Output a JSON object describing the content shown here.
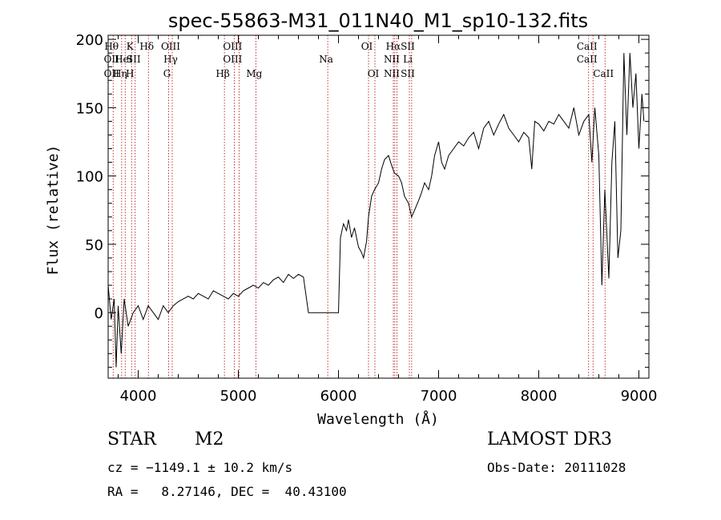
{
  "chart_data": {
    "type": "line",
    "title": "spec-55863-M31_011N40_M1_sp10-132.fits",
    "xlabel": "Wavelength (Å)",
    "ylabel": "Flux (relative)",
    "xlim": [
      3700,
      9100
    ],
    "ylim": [
      -48,
      203
    ],
    "xticks": [
      4000,
      5000,
      6000,
      7000,
      8000,
      9000
    ],
    "yticks": [
      0,
      50,
      100,
      150,
      200
    ],
    "series": [
      {
        "name": "flux",
        "x": [
          3700,
          3730,
          3760,
          3780,
          3800,
          3830,
          3860,
          3900,
          3950,
          4000,
          4050,
          4100,
          4150,
          4200,
          4250,
          4300,
          4350,
          4400,
          4450,
          4500,
          4550,
          4600,
          4650,
          4700,
          4750,
          4800,
          4850,
          4900,
          4950,
          5000,
          5050,
          5100,
          5150,
          5200,
          5250,
          5300,
          5350,
          5400,
          5450,
          5500,
          5550,
          5600,
          5650,
          5700,
          5800,
          5900,
          6000,
          6020,
          6050,
          6080,
          6100,
          6130,
          6160,
          6200,
          6230,
          6250,
          6280,
          6300,
          6330,
          6360,
          6400,
          6430,
          6460,
          6500,
          6530,
          6560,
          6600,
          6630,
          6660,
          6700,
          6730,
          6760,
          6800,
          6830,
          6860,
          6900,
          6930,
          6960,
          7000,
          7030,
          7060,
          7100,
          7150,
          7200,
          7250,
          7300,
          7350,
          7400,
          7450,
          7500,
          7550,
          7600,
          7650,
          7700,
          7750,
          7800,
          7850,
          7900,
          7930,
          7960,
          8000,
          8050,
          8100,
          8150,
          8200,
          8250,
          8300,
          8350,
          8400,
          8450,
          8500,
          8530,
          8560,
          8600,
          8630,
          8660,
          8700,
          8730,
          8760,
          8790,
          8820,
          8850,
          8880,
          8910,
          8940,
          8970,
          9000,
          9030,
          9050
        ],
        "y": [
          20,
          -5,
          10,
          -40,
          5,
          -30,
          10,
          -10,
          0,
          5,
          -5,
          5,
          0,
          -5,
          5,
          0,
          5,
          8,
          10,
          12,
          10,
          14,
          12,
          10,
          16,
          14,
          12,
          10,
          14,
          12,
          16,
          18,
          20,
          18,
          22,
          20,
          24,
          26,
          22,
          28,
          25,
          28,
          26,
          0,
          0,
          0,
          0,
          55,
          65,
          60,
          68,
          55,
          62,
          48,
          44,
          40,
          52,
          70,
          85,
          90,
          95,
          105,
          112,
          115,
          108,
          102,
          100,
          95,
          85,
          80,
          70,
          75,
          82,
          88,
          95,
          90,
          100,
          115,
          125,
          110,
          105,
          115,
          120,
          125,
          122,
          128,
          132,
          120,
          135,
          140,
          130,
          138,
          145,
          135,
          130,
          125,
          132,
          128,
          105,
          140,
          138,
          133,
          140,
          138,
          145,
          140,
          135,
          150,
          130,
          140,
          145,
          110,
          150,
          115,
          20,
          90,
          25,
          110,
          140,
          40,
          60,
          190,
          130,
          190,
          150,
          175,
          120,
          160,
          140
        ]
      }
    ],
    "lines": [
      {
        "x": 3750,
        "labels": [
          "Hθ",
          "OII",
          "OII"
        ]
      },
      {
        "x": 3835,
        "labels": [
          "",
          "",
          "Hη"
        ]
      },
      {
        "x": 3870,
        "labels": [
          "",
          "HeI",
          ""
        ]
      },
      {
        "x": 3934,
        "labels": [
          "K",
          "",
          "H"
        ]
      },
      {
        "x": 3970,
        "labels": [
          "",
          "SII",
          ""
        ]
      },
      {
        "x": 4102,
        "labels": [
          "Hδ",
          "",
          ""
        ]
      },
      {
        "x": 4304,
        "labels": [
          "",
          "",
          "G"
        ]
      },
      {
        "x": 4340,
        "labels": [
          "OIII",
          "Hγ",
          ""
        ]
      },
      {
        "x": 4861,
        "labels": [
          "",
          "",
          "Hβ"
        ]
      },
      {
        "x": 4959,
        "labels": [
          "OIII",
          "OIII",
          ""
        ]
      },
      {
        "x": 5007,
        "labels": [
          "",
          "",
          ""
        ]
      },
      {
        "x": 5175,
        "labels": [
          "",
          "",
          "Mg"
        ]
      },
      {
        "x": 5893,
        "labels": [
          "",
          "Na",
          ""
        ]
      },
      {
        "x": 6300,
        "labels": [
          "OI",
          "",
          ""
        ]
      },
      {
        "x": 6364,
        "labels": [
          "",
          "",
          "OI"
        ]
      },
      {
        "x": 6548,
        "labels": [
          "",
          "NII",
          "NII"
        ]
      },
      {
        "x": 6563,
        "labels": [
          "Hα",
          "",
          ""
        ]
      },
      {
        "x": 6584,
        "labels": [
          "",
          "",
          ""
        ]
      },
      {
        "x": 6708,
        "labels": [
          "SII",
          "Li",
          "SII"
        ]
      },
      {
        "x": 6731,
        "labels": [
          "",
          "",
          ""
        ]
      },
      {
        "x": 8498,
        "labels": [
          "CaII",
          "CaII",
          ""
        ]
      },
      {
        "x": 8542,
        "labels": [
          "",
          "",
          ""
        ]
      },
      {
        "x": 8662,
        "labels": [
          "",
          "",
          "CaII"
        ]
      }
    ]
  },
  "info": {
    "class": "STAR",
    "subclass": "M2",
    "survey": "LAMOST DR3",
    "cz": "cz = −1149.1 ± 10.2 km/s",
    "obsdate": "Obs-Date: 20111028",
    "radec": "RA =   8.27146, DEC =  40.43100"
  }
}
